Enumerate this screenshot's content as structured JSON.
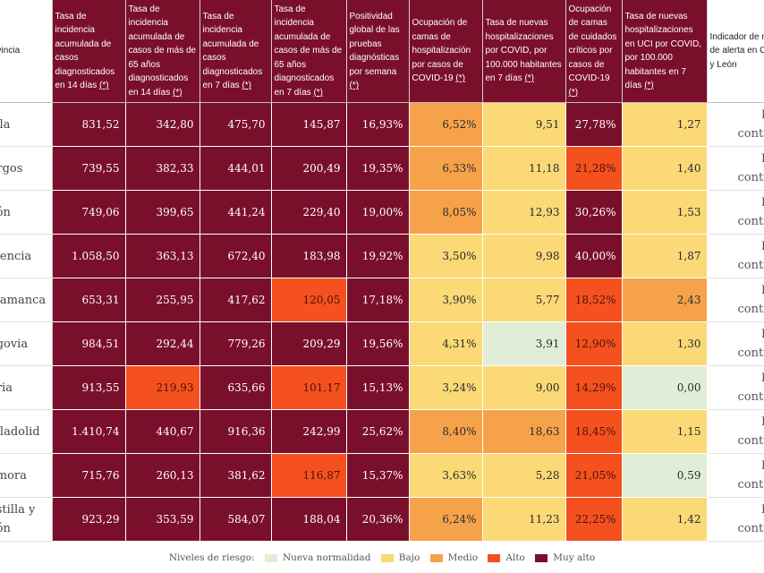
{
  "table": {
    "headers": [
      "ovincia",
      "Tasa de incidencia acumulada de casos diagnosticados en 14 días",
      "Tasa de incidencia acumulada de casos de más de 65 años diagnosticados en 14 días",
      "Tasa de incidencia acumulada de casos diagnosticados en 7 días",
      "Tasa de incidencia acumulada de casos de más de 65 años diagnosticados en 7 días",
      "Positividad global de las pruebas diagnósticas por semana",
      "Ocupación de camas de hospitalización por casos de COVID-19",
      "Tasa de nuevas hospitalizaciones por COVID, por 100.000 habitantes en 7 días",
      "Ocupación de camas de cuidados críticos por casos de COVID-19",
      "Tasa de nuevas hospitalizaciones en UCI por COVID, por 100.000 habitantes en 7 días",
      "Indicador de nivel de alerta en Castilla y León"
    ],
    "note_mark": "(*)",
    "rows": [
      {
        "name": [
          "vila"
        ],
        "cells": [
          "831,52",
          "342,80",
          "475,70",
          "145,87",
          "16,93%",
          "6,52%",
          "9,51",
          "27,78%",
          "1,27"
        ],
        "levels": [
          "mal",
          "mal",
          "mal",
          "mal",
          "mal",
          "medio",
          "bajo",
          "mal",
          "bajo"
        ],
        "alert": [
          "Riesg",
          "controlad"
        ]
      },
      {
        "name": [
          "urgos"
        ],
        "cells": [
          "739,55",
          "382,33",
          "444,01",
          "200,49",
          "19,35%",
          "6,33%",
          "11,18",
          "21,28%",
          "1,40"
        ],
        "levels": [
          "mal",
          "mal",
          "mal",
          "mal",
          "mal",
          "medio",
          "bajo",
          "alto",
          "bajo"
        ],
        "alert": [
          "Riesg",
          "controlad"
        ]
      },
      {
        "name": [
          "eón"
        ],
        "cells": [
          "749,06",
          "399,65",
          "441,24",
          "229,40",
          "19,00%",
          "8,05%",
          "12,93",
          "30,26%",
          "1,53"
        ],
        "levels": [
          "mal",
          "mal",
          "mal",
          "mal",
          "mal",
          "medio",
          "bajo",
          "mal",
          "bajo"
        ],
        "alert": [
          "Riesg",
          "controlad"
        ]
      },
      {
        "name": [
          "alencia"
        ],
        "cells": [
          "1.058,50",
          "363,13",
          "672,40",
          "183,98",
          "19,92%",
          "3,50%",
          "9,98",
          "40,00%",
          "1,87"
        ],
        "levels": [
          "mal",
          "mal",
          "mal",
          "mal",
          "mal",
          "bajo",
          "bajo",
          "mal",
          "bajo"
        ],
        "alert": [
          "Riesg",
          "controlad"
        ]
      },
      {
        "name": [
          "alamanca"
        ],
        "cells": [
          "653,31",
          "255,95",
          "417,62",
          "120,05",
          "17,18%",
          "3,90%",
          "5,77",
          "18,52%",
          "2,43"
        ],
        "levels": [
          "mal",
          "mal",
          "mal",
          "alto",
          "mal",
          "bajo",
          "bajo",
          "alto",
          "medio"
        ],
        "alert": [
          "Riesg",
          "controlad"
        ]
      },
      {
        "name": [
          "egovia"
        ],
        "cells": [
          "984,51",
          "292,44",
          "779,26",
          "209,29",
          "19,56%",
          "4,31%",
          "3,91",
          "12,90%",
          "1,30"
        ],
        "levels": [
          "mal",
          "mal",
          "mal",
          "mal",
          "mal",
          "bajo",
          "nueva",
          "alto",
          "bajo"
        ],
        "alert": [
          "Riesg",
          "controlad"
        ]
      },
      {
        "name": [
          "oria"
        ],
        "cells": [
          "913,55",
          "219,93",
          "635,66",
          "101,17",
          "15,13%",
          "3,24%",
          "9,00",
          "14,29%",
          "0,00"
        ],
        "levels": [
          "mal",
          "alto",
          "mal",
          "alto",
          "mal",
          "bajo",
          "bajo",
          "alto",
          "nueva"
        ],
        "alert": [
          "Riesg",
          "controlad"
        ]
      },
      {
        "name": [
          "alladolid"
        ],
        "cells": [
          "1.410,74",
          "440,67",
          "916,36",
          "242,99",
          "25,62%",
          "8,40%",
          "18,63",
          "18,45%",
          "1,15"
        ],
        "levels": [
          "mal",
          "mal",
          "mal",
          "mal",
          "mal",
          "medio",
          "medio",
          "alto",
          "bajo"
        ],
        "alert": [
          "Riesg",
          "controlad"
        ]
      },
      {
        "name": [
          "amora"
        ],
        "cells": [
          "715,76",
          "260,13",
          "381,62",
          "116,87",
          "15,37%",
          "3,63%",
          "5,28",
          "21,05%",
          "0,59"
        ],
        "levels": [
          "mal",
          "mal",
          "mal",
          "alto",
          "mal",
          "bajo",
          "bajo",
          "alto",
          "nueva"
        ],
        "alert": [
          "Riesg",
          "controlad"
        ]
      },
      {
        "name": [
          "astilla y",
          "eón"
        ],
        "cells": [
          "923,29",
          "353,59",
          "584,07",
          "188,04",
          "20,36%",
          "6,24%",
          "11,23",
          "22,25%",
          "1,42"
        ],
        "levels": [
          "mal",
          "mal",
          "mal",
          "mal",
          "mal",
          "medio",
          "bajo",
          "alto",
          "bajo"
        ],
        "alert": [
          "Riesg",
          "controlad"
        ]
      }
    ]
  },
  "legend": {
    "title": "Niveles de riesgo:",
    "items": [
      {
        "label": "Nueva normalidad",
        "color": "#e1eed7"
      },
      {
        "label": "Bajo",
        "color": "#fbd977"
      },
      {
        "label": "Medio",
        "color": "#f6a24b"
      },
      {
        "label": "Alto",
        "color": "#f4511e"
      },
      {
        "label": "Muy alto",
        "color": "#7a0f2c"
      }
    ]
  },
  "colors": {
    "muy_alto": "#7a0f2c",
    "alto": "#f4511e",
    "medio": "#f6a24b",
    "bajo": "#fbd977",
    "nueva_normalidad": "#e1eed7"
  }
}
